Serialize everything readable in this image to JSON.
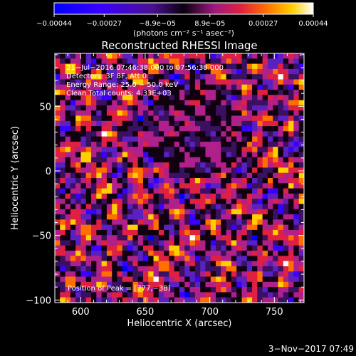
{
  "chart_data": {
    "type": "heatmap",
    "title": "Reconstructed RHESSI Image",
    "xlabel": "Heliocentric X (arcsec)",
    "ylabel": "Heliocentric Y (arcsec)",
    "xlim": [
      580,
      773
    ],
    "ylim": [
      -102,
      91
    ],
    "x_ticks": [
      {
        "value": 600,
        "label": "600"
      },
      {
        "value": 650,
        "label": "650"
      },
      {
        "value": 700,
        "label": "700"
      },
      {
        "value": 750,
        "label": "750"
      }
    ],
    "y_ticks": [
      {
        "value": 50,
        "label": "50"
      },
      {
        "value": 0,
        "label": "0"
      },
      {
        "value": -50,
        "label": "−50"
      },
      {
        "value": -100,
        "label": "−100"
      }
    ],
    "colorbar": {
      "unit_label": "(photons cm⁻² s⁻¹ asec⁻²)",
      "range": [
        -0.00044,
        0.00044
      ],
      "ticks": [
        {
          "value": -0.00044,
          "label": "−0.00044"
        },
        {
          "value": -0.00027,
          "label": "−0.00027"
        },
        {
          "value": -8.9e-05,
          "label": "−8.9e−05"
        },
        {
          "value": 8.9e-05,
          "label": "8.9e−05"
        },
        {
          "value": 0.00027,
          "label": "0.00027"
        },
        {
          "value": 0.00044,
          "label": "0.00044"
        }
      ]
    },
    "annotations": [
      "21−Jul−2016 07:46:38.000 to 07:56:38.000",
      "Detectors: 3F 8F, Att 0",
      "Energy Range: 25.0 − 50.0 keV",
      "Clean     Total counts: 4.33E+03"
    ],
    "peak_label": "Position of Peak = [777,−38]",
    "peak_position": [
      777,
      -38
    ],
    "grid_cells": [
      48,
      48
    ],
    "intensity_pattern": "noisy mottled clean residuals, range -0.00044 to 0.00044"
  },
  "footer": {
    "timestamp": "3−Nov−2017 07:49"
  },
  "colors": {
    "background": "#000000",
    "text": "#ffffff",
    "colormap": [
      "#0000ff",
      "#3a00ff",
      "#5a20c0",
      "#3a1060",
      "#100010",
      "#b0208a",
      "#e02040",
      "#ff7000",
      "#ffd000",
      "#ffffff"
    ]
  }
}
